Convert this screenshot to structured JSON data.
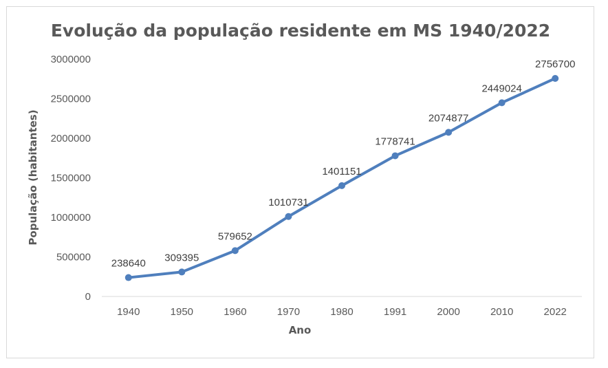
{
  "chart_data": {
    "type": "line",
    "title": "Evolução da população residente em MS 1940/2022",
    "xlabel": "Ano",
    "ylabel": "População (habitantes)",
    "categories": [
      "1940",
      "1950",
      "1960",
      "1970",
      "1980",
      "1991",
      "2000",
      "2010",
      "2022"
    ],
    "series": [
      {
        "values": [
          238640,
          309395,
          579652,
          1010731,
          1401151,
          1778741,
          2074877,
          2449024,
          2756700
        ],
        "color": "#4f7fbd"
      }
    ],
    "ylim": [
      0,
      3000000
    ],
    "yticks": [
      "0",
      "500000",
      "1000000",
      "1500000",
      "2000000",
      "2500000",
      "3000000"
    ],
    "grid": false,
    "legend": "none",
    "data_labels": true
  }
}
